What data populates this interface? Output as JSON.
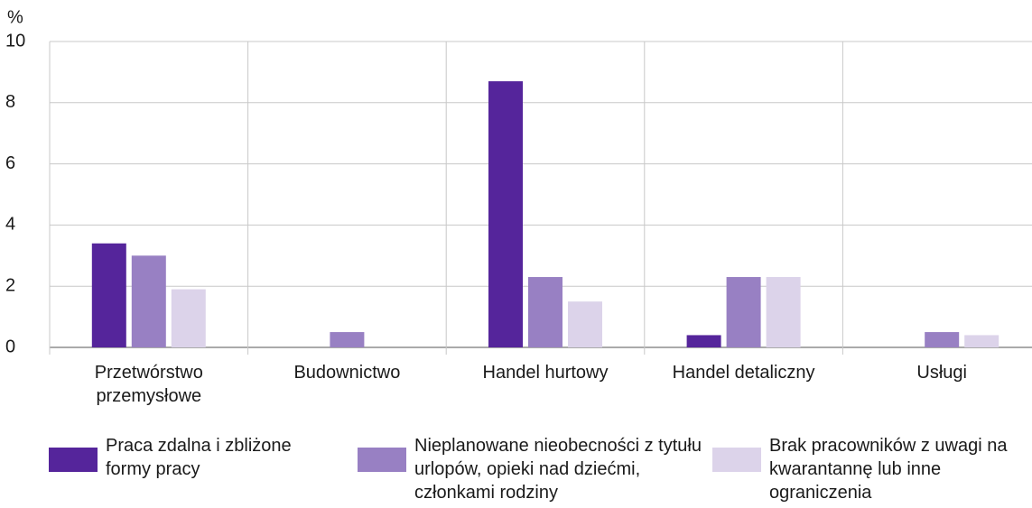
{
  "chart_data": {
    "type": "bar",
    "y_label": "%",
    "categories": [
      "Przetwórstwo przemysłowe",
      "Budownictwo",
      "Handel hurtowy",
      "Handel detaliczny",
      "Usługi"
    ],
    "series": [
      {
        "name": "Praca zdalna i zbliżone formy pracy",
        "color": "#55259b",
        "values": [
          3.4,
          0,
          8.7,
          0.4,
          0
        ]
      },
      {
        "name": "Nieplanowane nieobecności z tytułu urlopów, opieki nad dziećmi, członkami rodziny",
        "color": "#9880c3",
        "values": [
          3.0,
          0.5,
          2.3,
          2.3,
          0.5
        ]
      },
      {
        "name": "Brak pracowników z uwagi na kwarantannę lub inne ograniczenia",
        "color": "#dcd3ea",
        "values": [
          1.9,
          0,
          1.5,
          2.3,
          0.4
        ]
      }
    ],
    "ylim": [
      0,
      10
    ],
    "yticks": [
      0,
      2,
      4,
      6,
      8,
      10
    ],
    "grid": true,
    "legend": "bottom"
  }
}
